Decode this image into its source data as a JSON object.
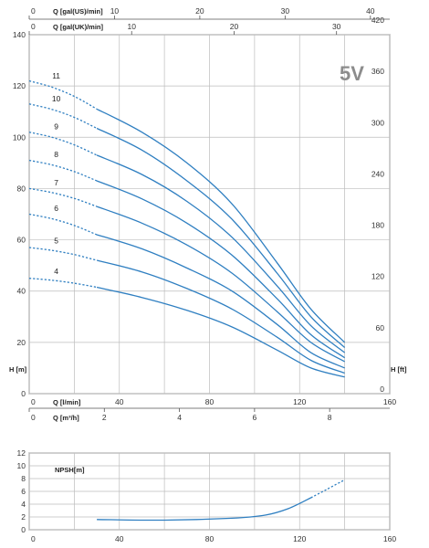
{
  "badge": "5V",
  "chart_data": {
    "type": "line",
    "main": {
      "ylabel_left": "H [m]",
      "ylabel_right": "H [ft]",
      "ylim": [
        0,
        140
      ],
      "yticks_left": [
        "0",
        "20",
        "40",
        "60",
        "80",
        "100",
        "120",
        "140"
      ],
      "yticks_right": [
        "0",
        "60",
        "120",
        "180",
        "240",
        "300",
        "360",
        "420"
      ],
      "xlim": [
        0,
        160
      ],
      "x_axes": [
        {
          "label": "Q [gal(US)/min]",
          "ticks": [
            "0",
            "10",
            "20",
            "30",
            "40"
          ],
          "factor": 0.26417
        },
        {
          "label": "Q [gal(UK)/min]",
          "ticks": [
            "0",
            "10",
            "20",
            "30"
          ],
          "factor": 0.21997
        },
        {
          "label": "Q [l/min]",
          "ticks": [
            "0",
            "40",
            "80",
            "120",
            "160"
          ],
          "factor": 1
        },
        {
          "label": "Q [m³/h]",
          "ticks": [
            "0",
            "2",
            "4",
            "6",
            "8"
          ],
          "factor": 0.06
        }
      ],
      "series": [
        {
          "name": "4",
          "x": [
            30,
            50,
            70,
            90,
            110,
            125,
            140
          ],
          "y": [
            41.5,
            37.5,
            32.5,
            26,
            17,
            10,
            6.5
          ],
          "shutoff": 45
        },
        {
          "name": "5",
          "x": [
            30,
            50,
            70,
            90,
            110,
            125,
            140
          ],
          "y": [
            52,
            47.5,
            41,
            33,
            22,
            13,
            8
          ],
          "shutoff": 57
        },
        {
          "name": "6",
          "x": [
            30,
            50,
            70,
            90,
            110,
            125,
            140
          ],
          "y": [
            62,
            56.5,
            49,
            40,
            27,
            16,
            10
          ],
          "shutoff": 70
        },
        {
          "name": "7",
          "x": [
            30,
            50,
            70,
            90,
            110,
            125,
            140
          ],
          "y": [
            73,
            66.5,
            58,
            47,
            32,
            20,
            12.5
          ],
          "shutoff": 80
        },
        {
          "name": "8",
          "x": [
            30,
            50,
            70,
            90,
            110,
            125,
            140
          ],
          "y": [
            83,
            76,
            66.5,
            54,
            37,
            23,
            14
          ],
          "shutoff": 91
        },
        {
          "name": "9",
          "x": [
            30,
            50,
            70,
            90,
            110,
            125,
            140
          ],
          "y": [
            93,
            85.5,
            75,
            61,
            42,
            26.5,
            16
          ],
          "shutoff": 102
        },
        {
          "name": "10",
          "x": [
            30,
            50,
            70,
            90,
            110,
            125,
            140
          ],
          "y": [
            103.5,
            95,
            83,
            68,
            47,
            30,
            18
          ],
          "shutoff": 113
        },
        {
          "name": "11",
          "x": [
            30,
            50,
            70,
            90,
            110,
            125,
            140
          ],
          "y": [
            111,
            102,
            90,
            74,
            51,
            33,
            20
          ],
          "shutoff": 122
        }
      ]
    },
    "npsh": {
      "title": "NPSH[m]",
      "ylim": [
        0,
        12
      ],
      "yticks": [
        "0",
        "2",
        "4",
        "6",
        "8",
        "10",
        "12"
      ],
      "xlim": [
        0,
        160
      ],
      "xticks": [
        "0",
        "40",
        "80",
        "120",
        "160"
      ],
      "x": [
        30,
        60,
        90,
        105,
        115,
        125
      ],
      "y": [
        1.6,
        1.5,
        1.8,
        2.3,
        3.3,
        5.0
      ],
      "dashed_x": [
        125,
        132,
        140
      ],
      "dashed_y": [
        5.0,
        6.3,
        7.8
      ]
    }
  },
  "colors": {
    "curve": "#2f7fc1",
    "curve_light": "#3a93d6"
  }
}
